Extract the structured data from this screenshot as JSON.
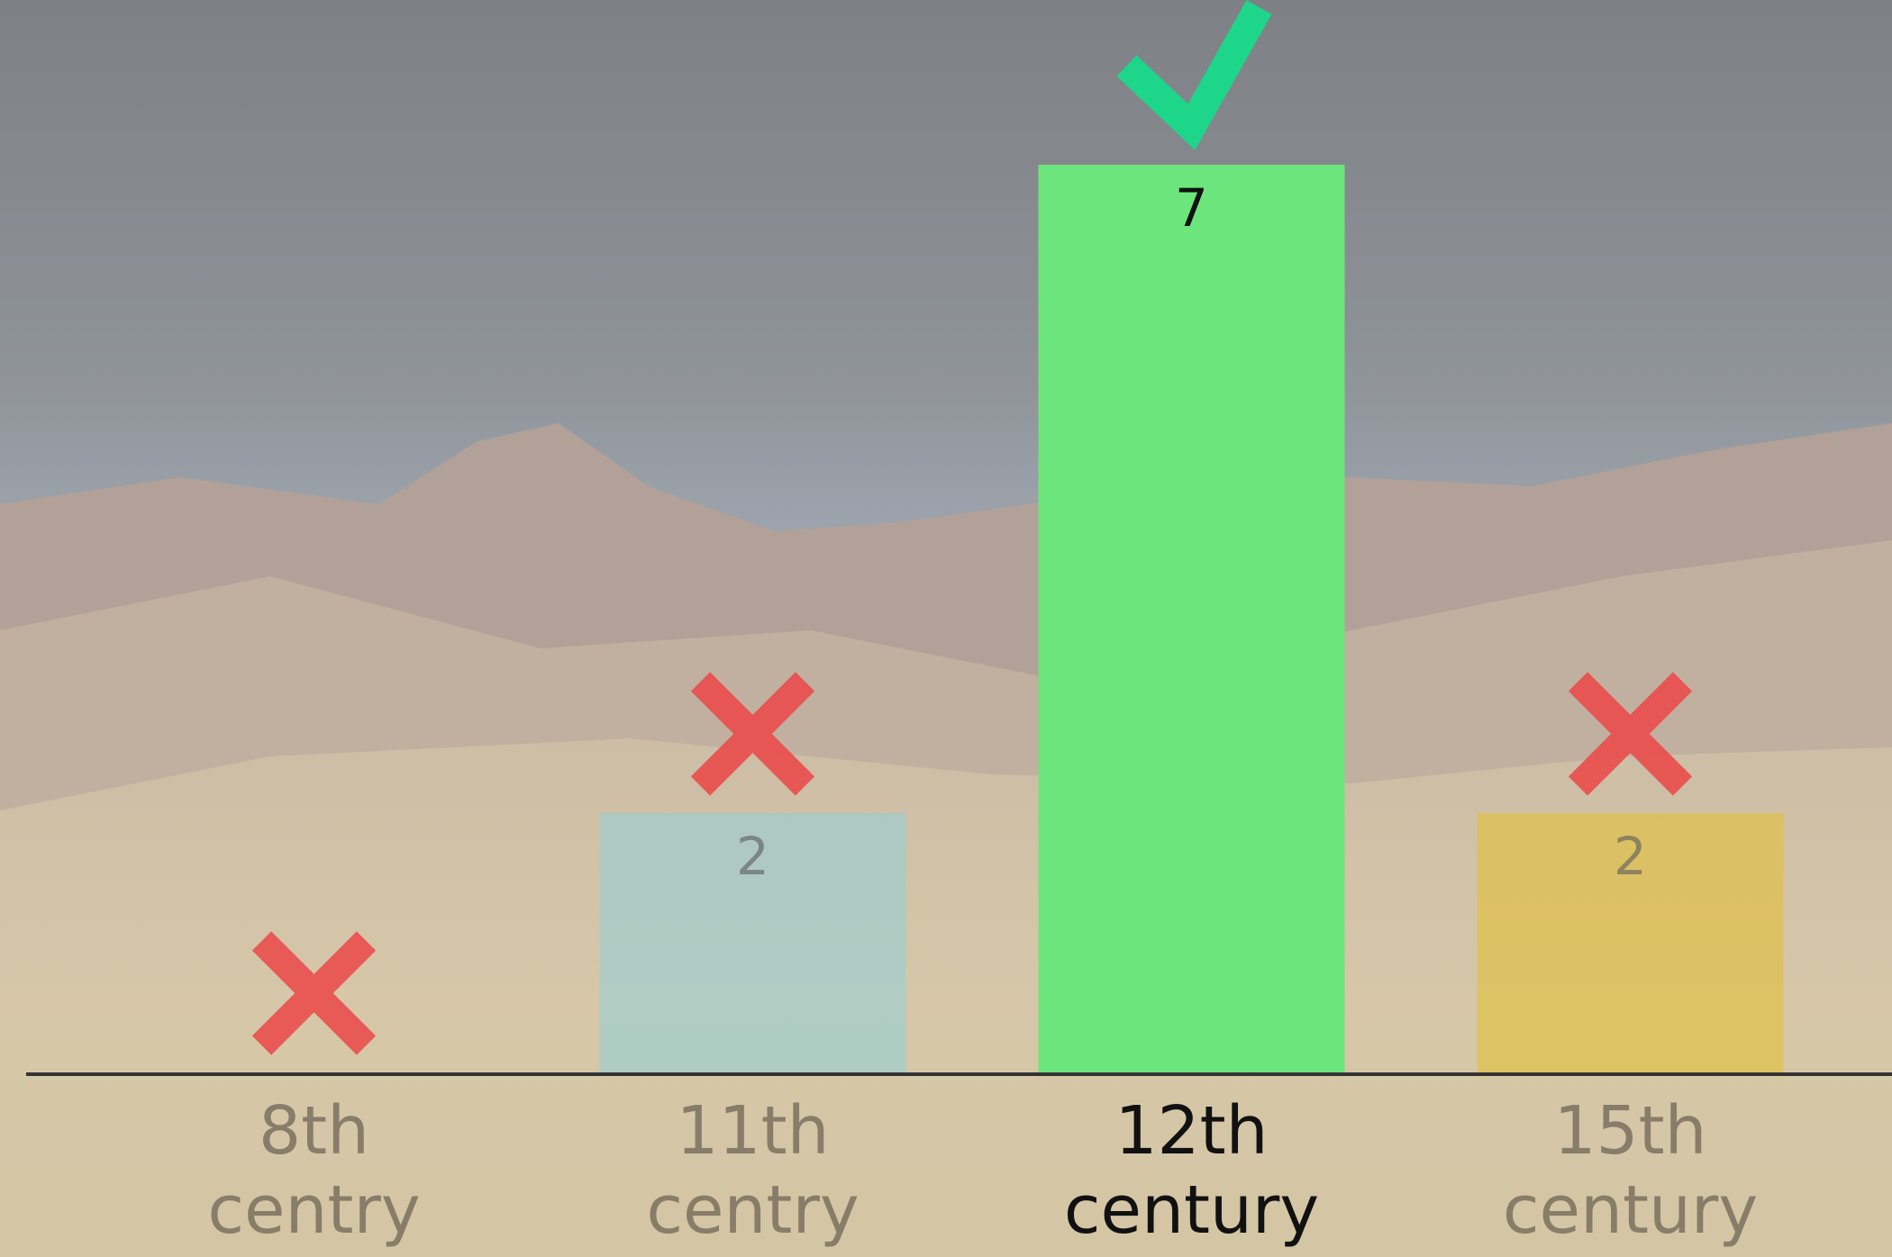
{
  "chart_data": {
    "type": "bar",
    "categories": [
      "8th centry",
      "11th centry",
      "12th century",
      "15th century"
    ],
    "values": [
      0,
      2,
      7,
      2
    ],
    "colors": [
      null,
      "#8fd0d8",
      "#6ce67c",
      "#e3bf2e"
    ],
    "correct_index": 2,
    "ylim": [
      0,
      7
    ]
  }
}
